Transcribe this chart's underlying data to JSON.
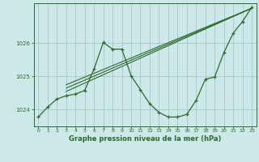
{
  "background_color": "#cce8e8",
  "grid_color": "#aacccc",
  "line_color": "#2d6a2d",
  "marker_color": "#2d6a2d",
  "title": "Graphe pression niveau de la mer (hPa)",
  "xlim": [
    -0.5,
    23.5
  ],
  "ylim": [
    1023.5,
    1027.2
  ],
  "yticks": [
    1024,
    1025,
    1026
  ],
  "xticks": [
    0,
    1,
    2,
    3,
    4,
    5,
    6,
    7,
    8,
    9,
    10,
    11,
    12,
    13,
    14,
    15,
    16,
    17,
    18,
    19,
    20,
    21,
    22,
    23
  ],
  "main_series_x": [
    0,
    1,
    2,
    3,
    4,
    5,
    6,
    7,
    8,
    9,
    10,
    11,
    12,
    13,
    14,
    15,
    16,
    17,
    18,
    19,
    20,
    21,
    22,
    23
  ],
  "main_series_y": [
    1023.78,
    1024.08,
    1024.32,
    1024.42,
    1024.47,
    1024.58,
    1025.22,
    1026.02,
    1025.82,
    1025.82,
    1025.02,
    1024.6,
    1024.18,
    1023.92,
    1023.78,
    1023.78,
    1023.86,
    1024.28,
    1024.92,
    1024.98,
    1025.72,
    1026.3,
    1026.65,
    1027.08
  ],
  "trend_lines": [
    {
      "x": [
        3,
        23
      ],
      "y": [
        1024.55,
        1027.05
      ]
    },
    {
      "x": [
        3,
        23
      ],
      "y": [
        1024.65,
        1027.05
      ]
    },
    {
      "x": [
        3,
        23
      ],
      "y": [
        1024.75,
        1027.05
      ]
    }
  ]
}
